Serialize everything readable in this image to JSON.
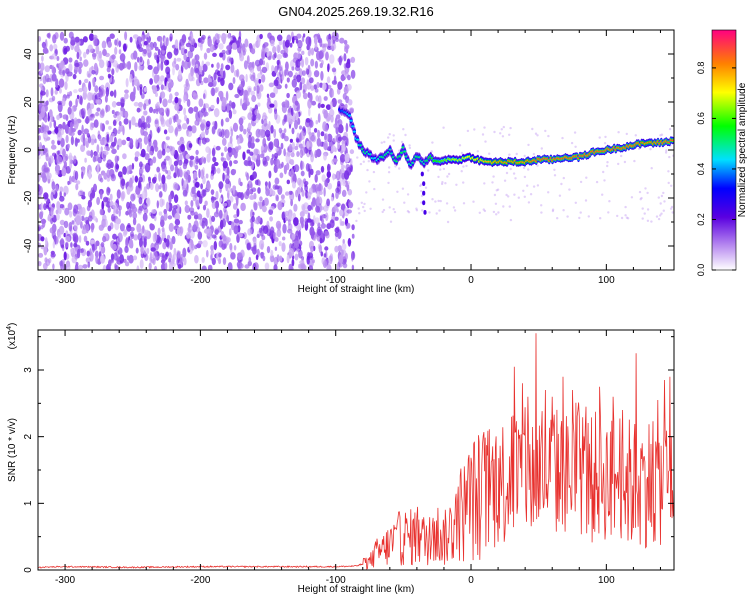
{
  "title": "GN04.2025.269.19.32.R16",
  "chart_data": [
    {
      "type": "heatmap",
      "xlabel": "Height of straight line (km)",
      "ylabel": "Frequency (Hz)",
      "xlim": [
        -320,
        150
      ],
      "ylim": [
        -50,
        50
      ],
      "x_ticks": [
        -300,
        -200,
        -100,
        0,
        100
      ],
      "y_ticks": [
        -40,
        -20,
        0,
        20,
        40
      ],
      "colorbar": {
        "label": "Normalized spectral amplitude",
        "range": [
          0.0,
          0.95
        ],
        "ticks": [
          0.0,
          0.2,
          0.4,
          0.6,
          0.8
        ]
      },
      "noise_region": {
        "x_start": -320,
        "x_end": -87,
        "y_range": [
          -50,
          48
        ],
        "amplitude": [
          0.05,
          0.2
        ]
      },
      "signal_ridge": {
        "x": [
          -97,
          -90,
          -85,
          -80,
          -75,
          -70,
          -65,
          -60,
          -55,
          -50,
          -45,
          -40,
          -35,
          -30,
          -25,
          -20,
          -10,
          0,
          10,
          20,
          30,
          40,
          50,
          60,
          70,
          80,
          90,
          100,
          110,
          120,
          130,
          140,
          150
        ],
        "frequency": [
          17,
          15,
          5,
          0,
          -2,
          -4,
          -3,
          0,
          -5,
          1,
          -7,
          -2,
          -6,
          -3,
          -5,
          -4,
          -4,
          -3,
          -5,
          -5,
          -5,
          -5,
          -4,
          -4,
          -3,
          -3,
          -1,
          0,
          1,
          2,
          3,
          3,
          4
        ],
        "amplitude": [
          0.35,
          0.45,
          0.45,
          0.55,
          0.5,
          0.45,
          0.55,
          0.5,
          0.55,
          0.55,
          0.5,
          0.55,
          0.5,
          0.6,
          0.6,
          0.65,
          0.7,
          0.75,
          0.8,
          0.85,
          0.85,
          0.85,
          0.9,
          0.9,
          0.9,
          0.9,
          0.9,
          0.9,
          0.9,
          0.9,
          0.85,
          0.9,
          0.9
        ]
      }
    },
    {
      "type": "line",
      "xlabel": "Height of straight line (km)",
      "ylabel": "SNR (10 * v/v)",
      "scale_label": "(x10",
      "scale_exponent": "4",
      "scale_label_close": ")",
      "xlim": [
        -320,
        150
      ],
      "ylim": [
        0,
        3.6
      ],
      "x_ticks": [
        -300,
        -200,
        -100,
        0,
        100
      ],
      "y_ticks": [
        0,
        1,
        2,
        3
      ],
      "series": [
        {
          "color": "#e8312e",
          "x": [
            -320,
            -300,
            -250,
            -200,
            -150,
            -100,
            -85,
            -75,
            -70,
            -65,
            -60,
            -55,
            -50,
            -45,
            -40,
            -35,
            -30,
            -25,
            -20,
            -15,
            -10,
            -5,
            0,
            5,
            10,
            15,
            20,
            25,
            30,
            35,
            40,
            45,
            50,
            55,
            60,
            65,
            70,
            75,
            80,
            85,
            90,
            95,
            100,
            105,
            110,
            115,
            120,
            125,
            130,
            135,
            140,
            145,
            150
          ],
          "y": [
            0.04,
            0.05,
            0.04,
            0.05,
            0.05,
            0.05,
            0.06,
            0.12,
            0.25,
            0.3,
            0.38,
            0.45,
            0.5,
            0.48,
            0.55,
            0.45,
            0.5,
            0.55,
            0.45,
            0.6,
            0.8,
            0.9,
            1.05,
            1.1,
            1.2,
            1.25,
            1.3,
            1.35,
            1.4,
            1.45,
            1.45,
            1.4,
            1.5,
            1.45,
            1.5,
            1.45,
            1.4,
            1.45,
            1.5,
            1.4,
            1.35,
            1.45,
            1.4,
            1.35,
            1.45,
            1.3,
            1.3,
            1.25,
            1.35,
            1.3,
            1.35,
            1.3,
            1.4
          ],
          "peaks": [
            [
              30,
              2.3
            ],
            [
              32,
              3.05
            ],
            [
              38,
              2.8
            ],
            [
              42,
              2.6
            ],
            [
              48,
              3.55
            ],
            [
              55,
              2.7
            ],
            [
              60,
              2.6
            ],
            [
              68,
              2.9
            ],
            [
              75,
              2.7
            ],
            [
              85,
              2.45
            ],
            [
              95,
              2.75
            ],
            [
              105,
              2.6
            ],
            [
              112,
              2.4
            ],
            [
              122,
              3.25
            ],
            [
              138,
              2.55
            ],
            [
              143,
              2.85
            ],
            [
              147,
              2.9
            ]
          ]
        }
      ]
    }
  ]
}
